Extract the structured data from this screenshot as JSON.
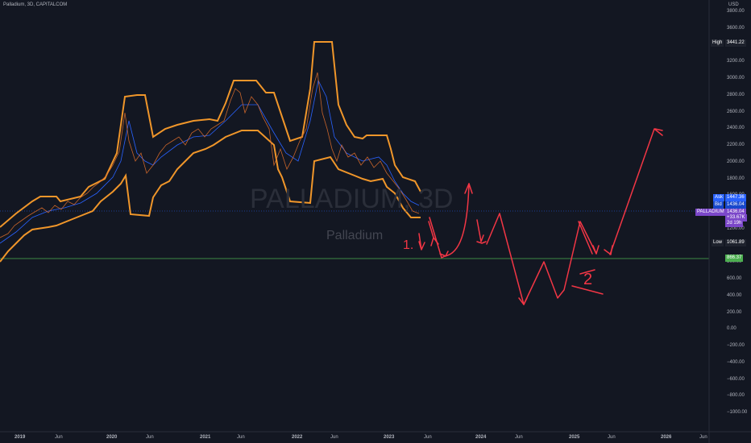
{
  "header": {
    "title": "Palladium, 3D, CAPITALCOM"
  },
  "watermark": {
    "symbol": "PALLADIUM, 3D",
    "name": "Palladium"
  },
  "axis": {
    "currency": "USD",
    "y_ticks": [
      "3800.00",
      "3600.00",
      "3400.00",
      "3200.00",
      "3000.00",
      "2800.00",
      "2600.00",
      "2400.00",
      "2200.00",
      "2000.00",
      "1800.00",
      "1600.00",
      "1400.00",
      "1200.00",
      "1000.00",
      "800.00",
      "600.00",
      "400.00",
      "200.00",
      "0.00",
      "−200.00",
      "−400.00",
      "−600.00",
      "−800.00",
      "−1000.00"
    ],
    "x_ticks": [
      "2019",
      "Jun",
      "2020",
      "Jun",
      "2021",
      "Jun",
      "2022",
      "Jun",
      "2023",
      "Jun",
      "2024",
      "Jun",
      "2025",
      "Jun",
      "2026",
      "Jun"
    ]
  },
  "price_tags": {
    "high_label": "High",
    "high_value": "3441.22",
    "ask_label": "Ask",
    "ask_value": "1447.36",
    "bid_label": "Bid",
    "bid_value": "1436.04",
    "symbol_label": "PALLADIUM",
    "last_value": "1436.04",
    "change": "+33.67K",
    "countdown": "2d 19h",
    "low_label": "Low",
    "low_value": "1061.89",
    "line_value": "866.37"
  },
  "annotations": {
    "label_1": "1.",
    "label_2": "2"
  },
  "colors": {
    "background": "#131722",
    "band": "#f0962a",
    "mid": "#2962ff",
    "drawing": "#f23645",
    "support": "#4caf50"
  }
}
